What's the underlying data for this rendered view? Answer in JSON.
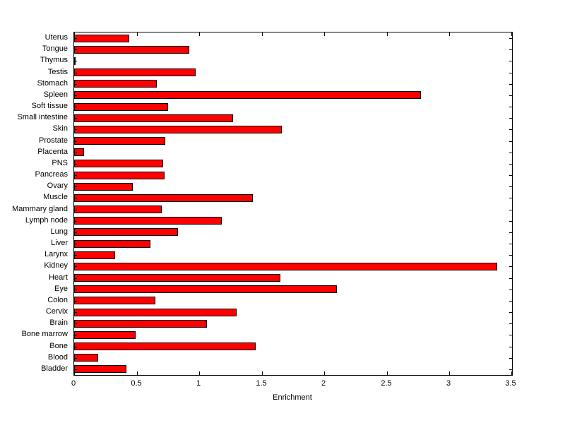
{
  "figure": {
    "background_color": "#ffffff",
    "plot_border_color": "#000000"
  },
  "chart_data": {
    "type": "bar",
    "orientation": "horizontal",
    "title": "",
    "xlabel": "Enrichment",
    "ylabel": "",
    "xlim": [
      0,
      3.5
    ],
    "xticks": [
      0,
      0.5,
      1,
      1.5,
      2,
      2.5,
      3,
      3.5
    ],
    "xtick_labels": [
      "0",
      "0.5",
      "1",
      "1.5",
      "2",
      "2.5",
      "3",
      "3.5"
    ],
    "category_order": "top-to-bottom",
    "categories": [
      "Uterus",
      "Tongue",
      "Thymus",
      "Testis",
      "Stomach",
      "Spleen",
      "Soft tissue",
      "Small intestine",
      "Skin",
      "Prostate",
      "Placenta",
      "PNS",
      "Pancreas",
      "Ovary",
      "Muscle",
      "Mammary gland",
      "Lymph node",
      "Lung",
      "Liver",
      "Larynx",
      "Kidney",
      "Heart",
      "Eye",
      "Colon",
      "Cervix",
      "Brain",
      "Bone marrow",
      "Bone",
      "Blood",
      "Bladder"
    ],
    "values": [
      0.44,
      0.92,
      0.01,
      0.97,
      0.66,
      2.77,
      0.75,
      1.27,
      1.66,
      0.73,
      0.08,
      0.71,
      0.72,
      0.47,
      1.43,
      0.7,
      1.18,
      0.83,
      0.61,
      0.33,
      3.38,
      1.65,
      2.1,
      0.65,
      1.3,
      1.06,
      0.49,
      1.45,
      0.19,
      0.42
    ],
    "bar_color": "#ff0000",
    "bar_edge_color": "#000000",
    "grid": false,
    "legend": null
  }
}
